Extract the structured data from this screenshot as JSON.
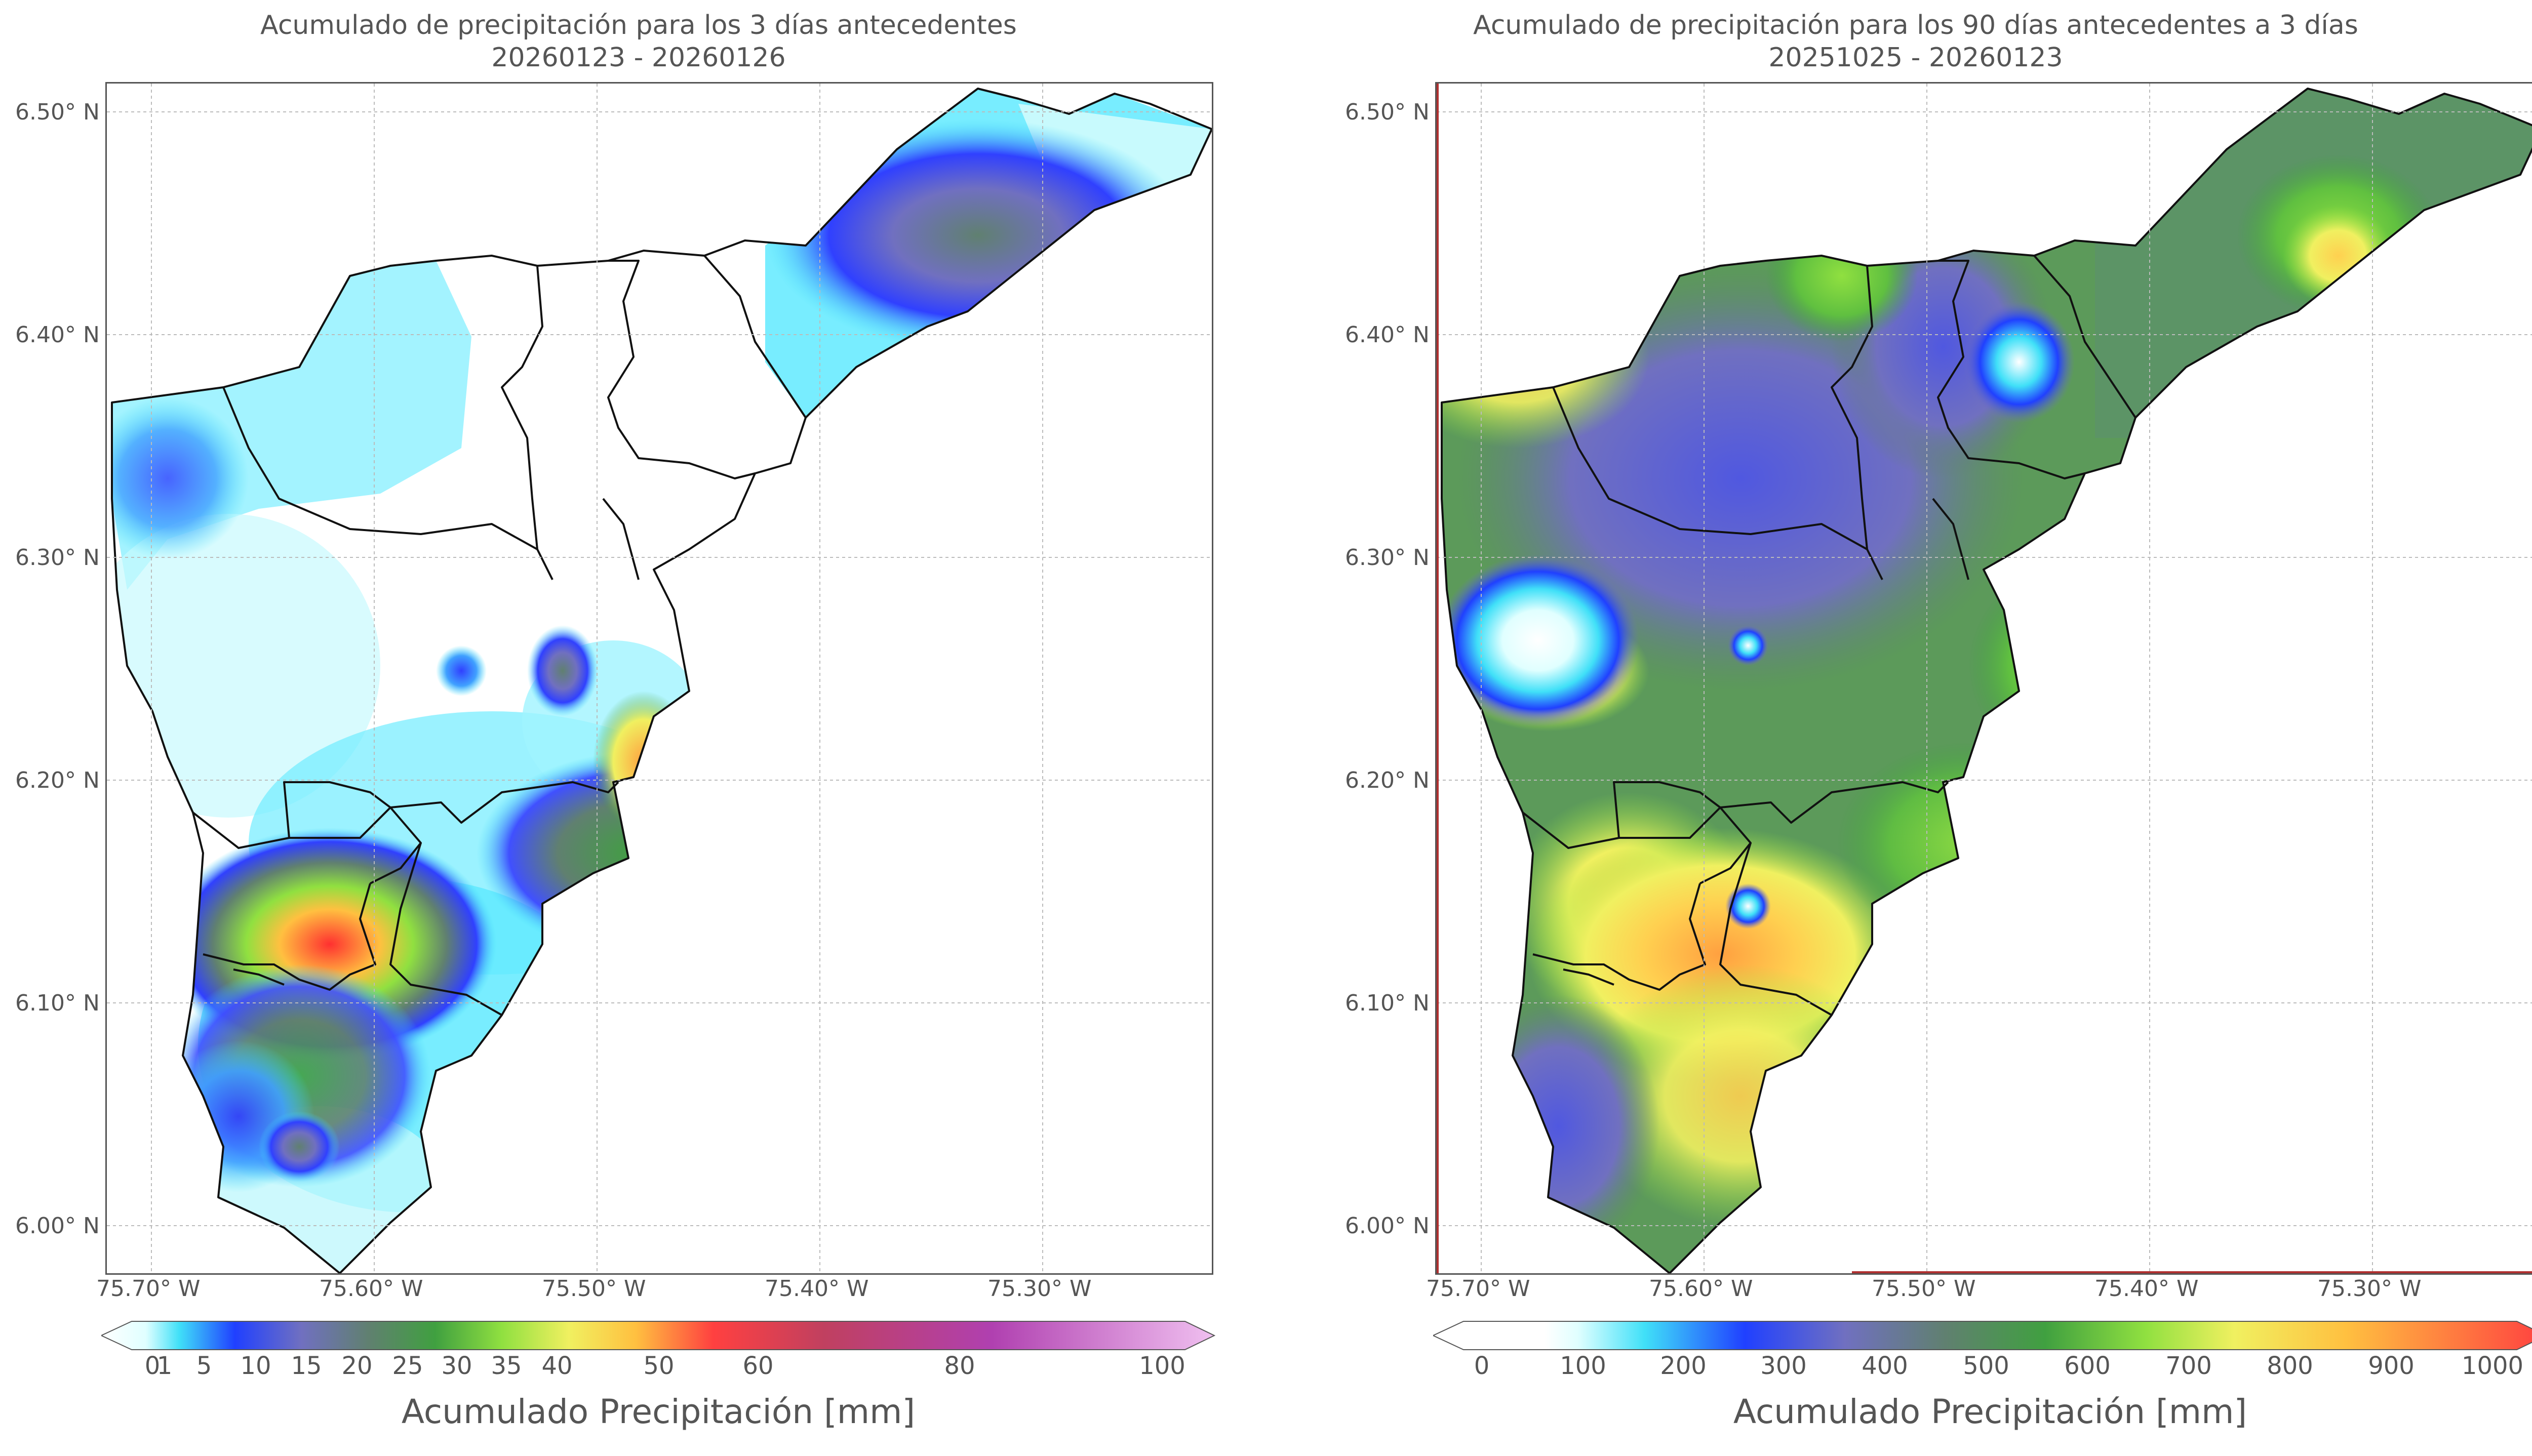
{
  "left_panel": {
    "title_line1": "Acumulado de precipitación para los 3 días antecedentes",
    "title_line2": "20260123 - 20260126",
    "lat_labels": [
      "6.50° N",
      "6.40° N",
      "6.30° N",
      "6.20° N",
      "6.10° N",
      "6.00° N"
    ],
    "lon_labels": [
      "75.70° W",
      "75.60° W",
      "75.50° W",
      "75.40° W",
      "75.30° W"
    ],
    "colorbar": {
      "label": "Acumulado Precipitación [mm]",
      "ticks": [
        "0",
        "1",
        "5",
        "10",
        "15",
        "20",
        "25",
        "30",
        "35",
        "40",
        "50",
        "60",
        "80",
        "100"
      ],
      "colors": [
        "#ffffff",
        "#e0ffff",
        "#40e0f8",
        "#2040ff",
        "#7070c0",
        "#608070",
        "#40a040",
        "#90e040",
        "#f0f060",
        "#ffc040",
        "#ff4040",
        "#c04060",
        "#b040b0",
        "#f0c0f0"
      ]
    }
  },
  "right_panel": {
    "title_line1": "Acumulado de precipitación para los 90 días antecedentes a 3 días",
    "title_line2": "20251025 - 20260123",
    "lat_labels": [
      "6.50° N",
      "6.40° N",
      "6.30° N",
      "6.20° N",
      "6.10° N",
      "6.00° N"
    ],
    "lon_labels": [
      "75.70° W",
      "75.60° W",
      "75.50° W",
      "75.40° W",
      "75.30° W"
    ],
    "colorbar": {
      "label": "Acumulado Precipitación [mm]",
      "ticks": [
        "0",
        "100",
        "200",
        "300",
        "400",
        "500",
        "600",
        "700",
        "800",
        "900",
        "1000"
      ],
      "colors": [
        "#ffffff",
        "#e0ffff",
        "#40e0f8",
        "#2040ff",
        "#7070c0",
        "#608070",
        "#40a040",
        "#90e040",
        "#f0f060",
        "#ffc040",
        "#ff4040"
      ]
    }
  }
}
